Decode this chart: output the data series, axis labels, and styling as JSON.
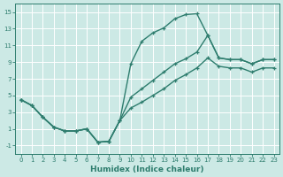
{
  "xlabel": "Humidex (Indice chaleur)",
  "bg_color": "#cce9e5",
  "line_color": "#2e7d6e",
  "grid_color": "#ffffff",
  "xlim": [
    -0.5,
    23.5
  ],
  "ylim": [
    -2,
    16
  ],
  "xticks": [
    0,
    1,
    2,
    3,
    4,
    5,
    6,
    7,
    8,
    9,
    10,
    11,
    12,
    13,
    14,
    15,
    16,
    17,
    18,
    19,
    20,
    21,
    22,
    23
  ],
  "yticks": [
    -1,
    1,
    3,
    5,
    7,
    9,
    11,
    13,
    15
  ],
  "line1_x": [
    0,
    1,
    2,
    3,
    4,
    5,
    6,
    7,
    8,
    9,
    10,
    11,
    12,
    13,
    14,
    15,
    16,
    17,
    18,
    19,
    20,
    21,
    22,
    23
  ],
  "line1_y": [
    4.5,
    3.8,
    2.4,
    1.2,
    0.75,
    0.75,
    1.0,
    -0.6,
    -0.5,
    2.0,
    8.8,
    11.5,
    12.5,
    13.1,
    14.2,
    14.7,
    14.8,
    12.2,
    9.5,
    9.3,
    9.3,
    8.8,
    9.3,
    9.3
  ],
  "line2_x": [
    0,
    1,
    2,
    3,
    4,
    5,
    6,
    7,
    8,
    9,
    10,
    11,
    12,
    13,
    14,
    15,
    16,
    17,
    18,
    19,
    20,
    21,
    22,
    23
  ],
  "line2_y": [
    4.5,
    3.8,
    2.4,
    1.2,
    0.75,
    0.75,
    1.0,
    -0.6,
    -0.5,
    2.0,
    4.8,
    5.8,
    6.8,
    7.8,
    8.8,
    9.4,
    10.2,
    12.2,
    9.5,
    9.3,
    9.3,
    8.8,
    9.3,
    9.3
  ],
  "line3_x": [
    0,
    1,
    2,
    3,
    4,
    5,
    6,
    7,
    8,
    9,
    10,
    11,
    12,
    13,
    14,
    15,
    16,
    17,
    18,
    19,
    20,
    21,
    22,
    23
  ],
  "line3_y": [
    4.5,
    3.8,
    2.4,
    1.2,
    0.75,
    0.75,
    1.0,
    -0.6,
    -0.5,
    2.0,
    3.5,
    4.2,
    5.0,
    5.8,
    6.8,
    7.5,
    8.3,
    9.5,
    8.5,
    8.3,
    8.3,
    7.8,
    8.3,
    8.3
  ],
  "xlabel_fontsize": 6.5,
  "tick_fontsize": 5.0,
  "linewidth": 1.0,
  "marker": "+",
  "markersize": 3.5
}
